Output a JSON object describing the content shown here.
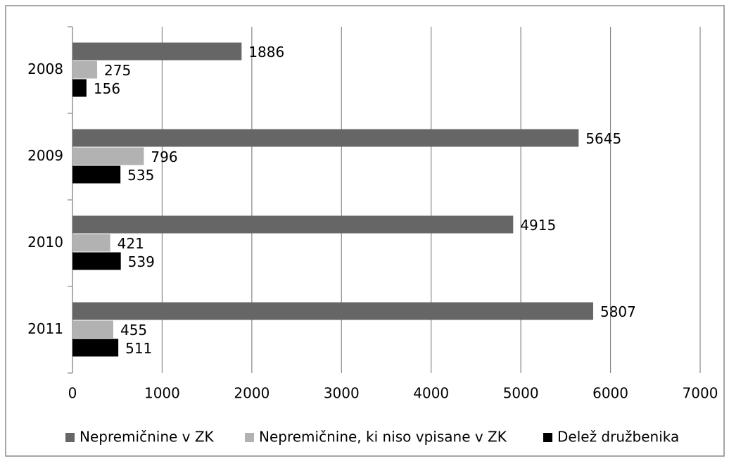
{
  "chart_data": {
    "type": "bar",
    "orientation": "horizontal",
    "categories": [
      "2008",
      "2009",
      "2010",
      "2011"
    ],
    "series": [
      {
        "name": "Nepremičnine v ZK",
        "color": "#666666",
        "values": [
          1886,
          5645,
          4915,
          5807
        ]
      },
      {
        "name": "Nepremičnine, ki niso vpisane v ZK",
        "color": "#b2b2b2",
        "values": [
          275,
          796,
          421,
          455
        ]
      },
      {
        "name": "Delež družbenika",
        "color": "#000000",
        "values": [
          156,
          535,
          539,
          511
        ]
      }
    ],
    "xlim": [
      0,
      7000
    ],
    "xticks": [
      0,
      1000,
      2000,
      3000,
      4000,
      5000,
      6000,
      7000
    ],
    "grid": true,
    "legend": "bottom"
  }
}
